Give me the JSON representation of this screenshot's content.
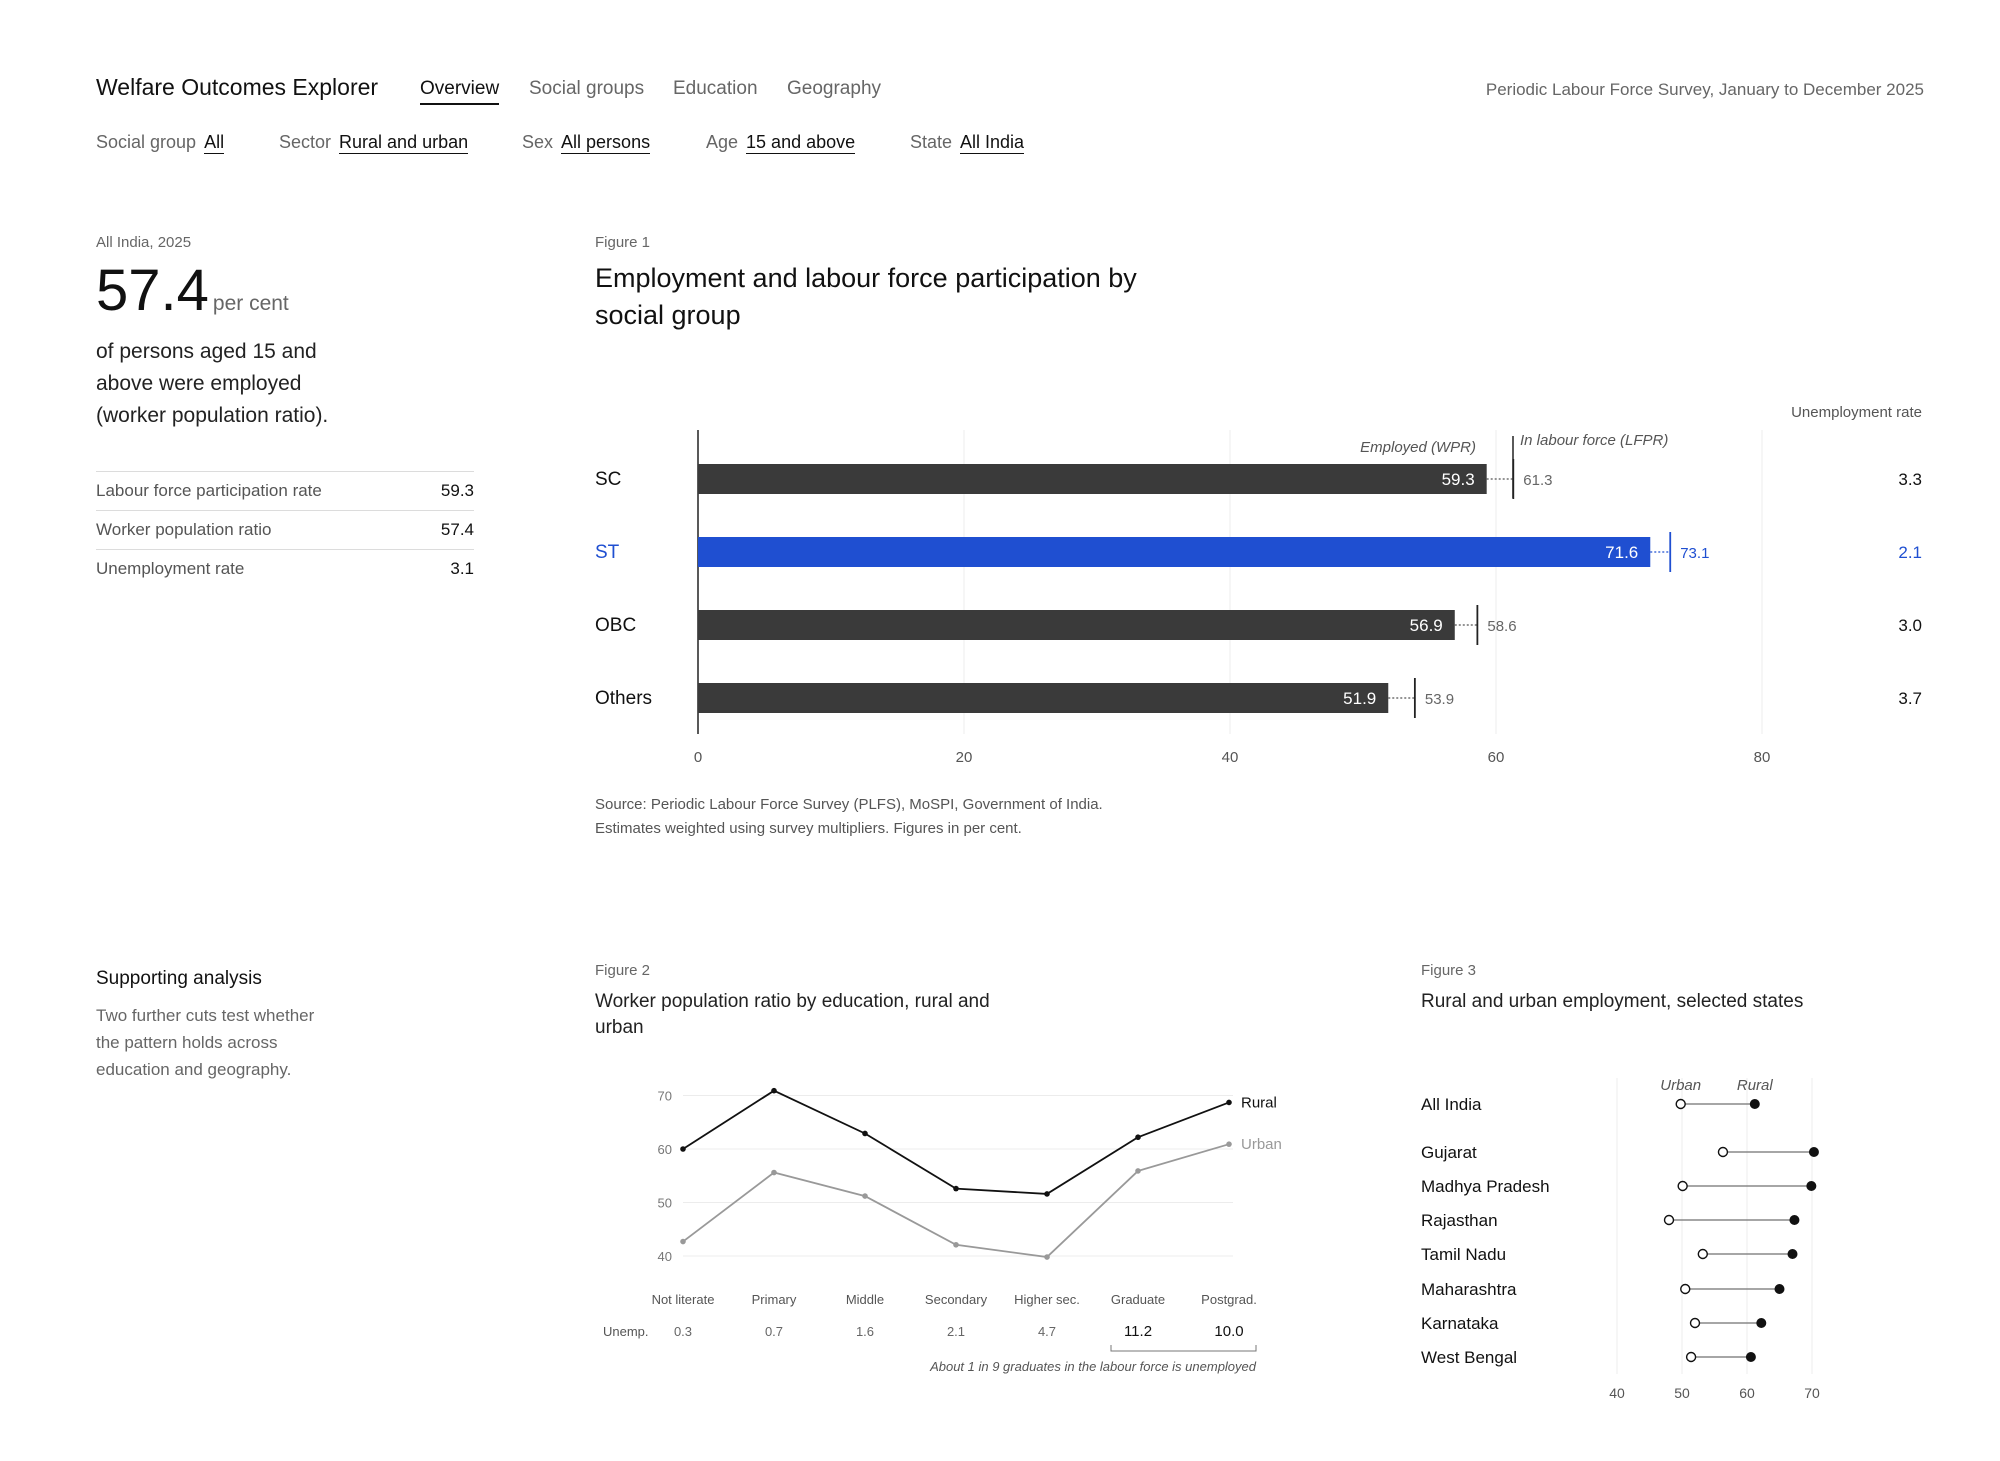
{
  "header": {
    "app_title": "Welfare Outcomes Explorer",
    "tabs": [
      {
        "label": "Overview",
        "active": true
      },
      {
        "label": "Social groups",
        "active": false
      },
      {
        "label": "Education",
        "active": false
      },
      {
        "label": "Geography",
        "active": false
      }
    ],
    "survey_note": "Periodic Labour Force Survey, January to December 2025"
  },
  "filters": [
    {
      "label": "Social group",
      "value": "All"
    },
    {
      "label": "Sector",
      "value": "Rural and urban"
    },
    {
      "label": "Sex",
      "value": "All persons"
    },
    {
      "label": "Age",
      "value": "15 and above"
    },
    {
      "label": "State",
      "value": "All India"
    }
  ],
  "summary": {
    "kicker": "All India, 2025",
    "big_value": "57.4",
    "big_unit": "per cent",
    "lead": "of persons aged 15 and above were employed (worker population ratio).",
    "stats": [
      {
        "label": "Labour force participation rate",
        "value": "59.3"
      },
      {
        "label": "Worker population ratio",
        "value": "57.4"
      },
      {
        "label": "Unemployment rate",
        "value": "3.1"
      }
    ]
  },
  "figure1": {
    "kicker": "Figure 1",
    "title": "Employment and labour force participation by social group",
    "note_line1": "Source: Periodic Labour Force Survey (PLFS), MoSPI, Government of India.",
    "note_line2": "Estimates weighted using survey multipliers. Figures in per cent.",
    "highlight_color": "#1f4fd1",
    "bar_color": "#3a3a3a"
  },
  "supporting": {
    "title": "Supporting analysis",
    "body": "Two further cuts test whether the pattern holds across education and geography."
  },
  "figure2": {
    "kicker": "Figure 2",
    "title": "Worker population ratio by education, rural and urban"
  },
  "figure3": {
    "kicker": "Figure 3",
    "title": "Rural and urban employment, selected states"
  },
  "chart_data": [
    {
      "type": "bar",
      "categories": [
        "SC",
        "ST",
        "OBC",
        "Others"
      ],
      "series": [
        {
          "name": "Employed (WPR)",
          "values": [
            59.3,
            71.6,
            56.9,
            51.9
          ]
        },
        {
          "name": "In labour force (LFPR)",
          "values": [
            61.3,
            73.1,
            58.6,
            53.9
          ]
        }
      ],
      "side_column": {
        "title": "Unemployment rate",
        "values": [
          "3.3",
          "2.1",
          "3.0",
          "3.7"
        ]
      },
      "highlight": "ST",
      "xticks": [
        0,
        20,
        40,
        60,
        80
      ],
      "xlim": [
        0,
        92
      ]
    },
    {
      "type": "line",
      "categories": [
        "Not literate",
        "Primary",
        "Middle",
        "Secondary",
        "Higher sec.",
        "Graduate",
        "Postgrad."
      ],
      "series": [
        {
          "name": "Rural",
          "values": [
            60.0,
            70.9,
            62.9,
            52.6,
            51.6,
            62.2,
            68.7
          ],
          "color": "#111111"
        },
        {
          "name": "Urban",
          "values": [
            42.7,
            55.6,
            51.2,
            42.1,
            39.8,
            55.9,
            60.9
          ],
          "color": "#999999"
        }
      ],
      "yticks": [
        40,
        50,
        60,
        70
      ],
      "ylim": [
        40,
        71
      ],
      "row_label": "Unemp.",
      "unemployment": [
        "0.3",
        "0.7",
        "1.6",
        "2.1",
        "4.7",
        "11.2",
        "10.0"
      ],
      "emphasis_from": 5,
      "annotation": "About 1 in 9 graduates in the labour force is unemployed"
    },
    {
      "type": "scatter",
      "categories": [
        "All India",
        "Gujarat",
        "Madhya Pradesh",
        "Rajasthan",
        "Tamil Nadu",
        "Maharashtra",
        "Karnataka",
        "West Bengal"
      ],
      "series": [
        {
          "name": "Urban",
          "values": [
            49.8,
            56.3,
            50.1,
            48.0,
            53.2,
            50.5,
            52.0,
            51.4
          ]
        },
        {
          "name": "Rural",
          "values": [
            61.2,
            70.3,
            69.9,
            67.3,
            67.0,
            65.0,
            62.2,
            60.6
          ]
        }
      ],
      "xticks": [
        40,
        50,
        60,
        70
      ],
      "xlim": [
        40,
        70
      ]
    }
  ]
}
